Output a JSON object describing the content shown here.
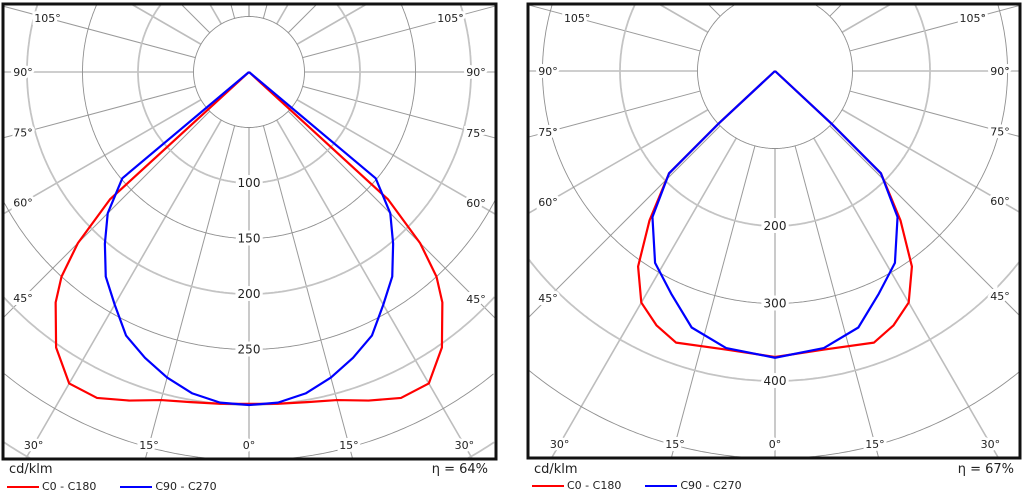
{
  "chart_data": [
    {
      "type": "polar",
      "unit_label": "cd/klm",
      "efficiency_label": "η = 64%",
      "radial_tick_labels": [
        100,
        150,
        200,
        250
      ],
      "angle_labels": [
        "0°",
        "15°",
        "30°",
        "45°",
        "60°",
        "75°",
        "90°",
        "105°"
      ],
      "series": [
        {
          "name": "C0 - C180",
          "color": "#ff0000",
          "gamma": [
            0,
            5,
            10,
            15,
            20,
            25,
            30,
            35,
            40,
            42.5,
            45,
            47.5
          ],
          "values": [
            299,
            300,
            302,
            306,
            315,
            324,
            324,
            303,
            271,
            250,
            218,
            170
          ]
        },
        {
          "name": "C90 - C270",
          "color": "#0000ff",
          "gamma": [
            0,
            5,
            10,
            15,
            20,
            25,
            30,
            35,
            40,
            45,
            50
          ],
          "values": [
            300,
            299,
            294,
            285,
            274,
            262,
            242,
            225,
            202,
            180,
            149
          ]
        }
      ]
    },
    {
      "type": "polar",
      "unit_label": "cd/klm",
      "efficiency_label": "η = 67%",
      "radial_tick_labels": [
        200,
        300,
        400
      ],
      "angle_labels": [
        "0°",
        "15°",
        "30°",
        "45°",
        "60°",
        "75°",
        "90°",
        "105°"
      ],
      "series": [
        {
          "name": "C0 - C180",
          "color": "#ff0000",
          "gamma": [
            0,
            10,
            20,
            25,
            30,
            35,
            40,
            46,
            47
          ],
          "values": [
            369,
            365,
            373,
            362,
            345,
            308,
            252,
            190,
            99
          ]
        },
        {
          "name": "C90 - C270",
          "color": "#0000ff",
          "gamma": [
            0,
            10,
            18,
            25,
            32,
            40,
            46,
            47
          ],
          "values": [
            370,
            363,
            348,
            317,
            292,
            246,
            190,
            99
          ]
        }
      ]
    }
  ]
}
